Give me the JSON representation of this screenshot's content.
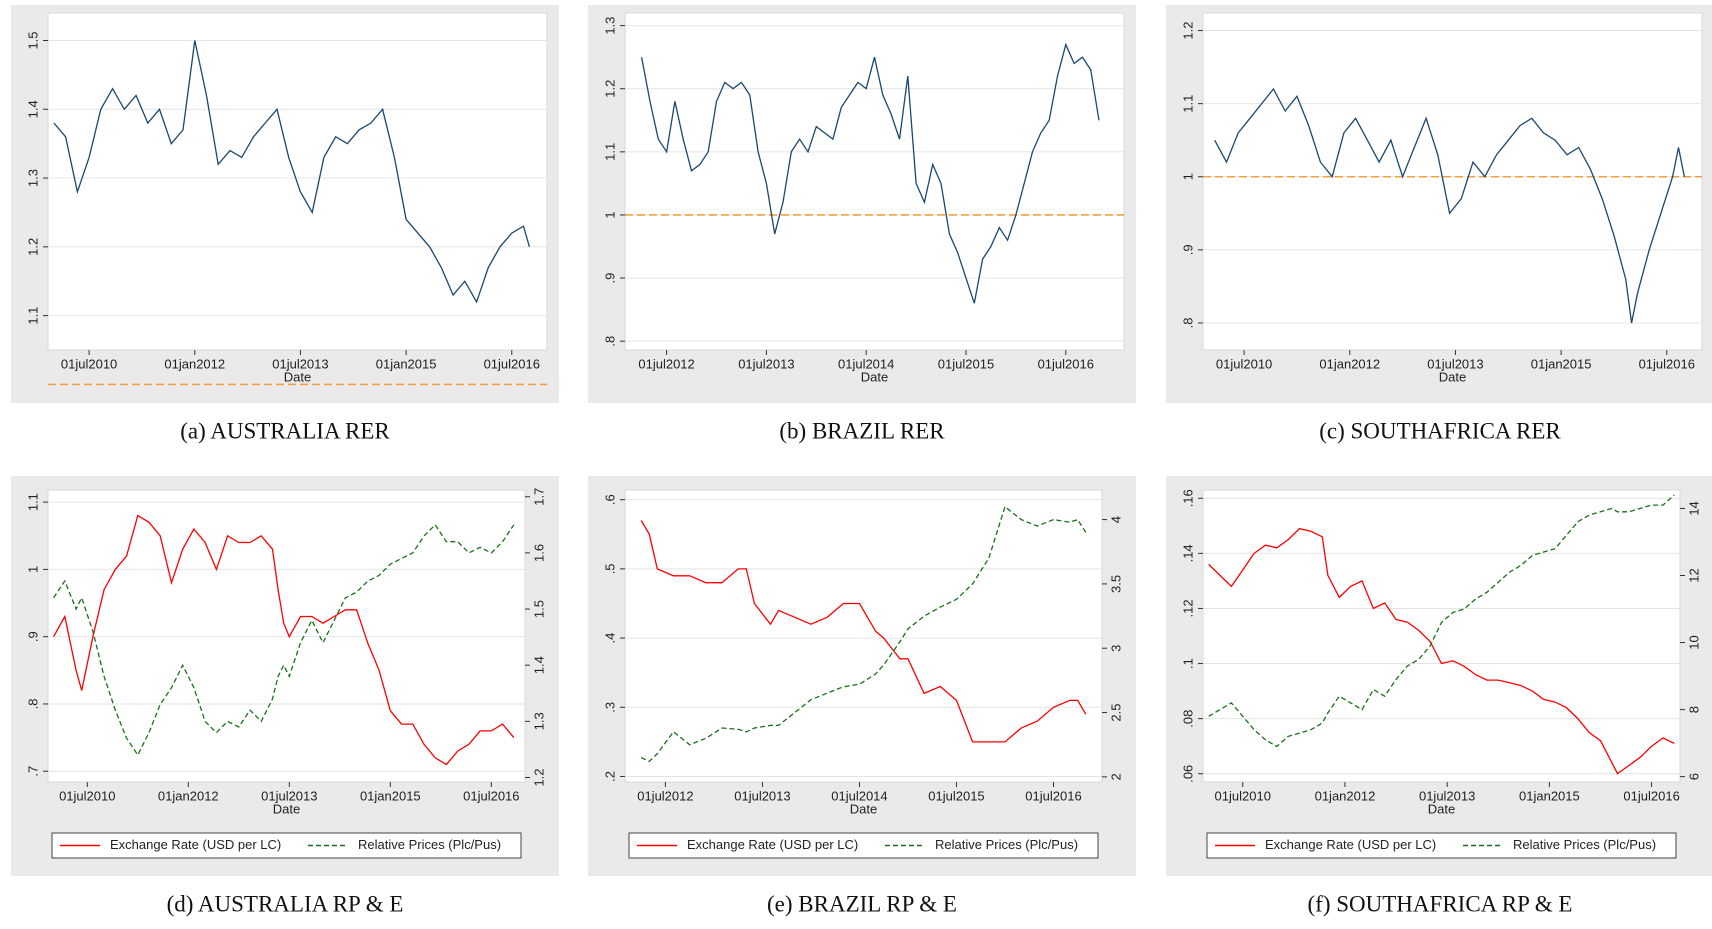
{
  "chart_data": [
    {
      "type": "line",
      "caption": "(a) AUSTRALIA RER",
      "xlabel": "Date",
      "grid": true,
      "x": [
        "2010-01",
        "2010-03",
        "2010-05",
        "2010-07",
        "2010-09",
        "2010-11",
        "2011-01",
        "2011-03",
        "2011-05",
        "2011-07",
        "2011-09",
        "2011-11",
        "2012-01",
        "2012-03",
        "2012-05",
        "2012-07",
        "2012-09",
        "2012-11",
        "2013-01",
        "2013-03",
        "2013-05",
        "2013-07",
        "2013-09",
        "2013-11",
        "2014-01",
        "2014-03",
        "2014-05",
        "2014-07",
        "2014-09",
        "2014-11",
        "2015-01",
        "2015-03",
        "2015-05",
        "2015-07",
        "2015-09",
        "2015-11",
        "2016-01",
        "2016-03",
        "2016-05",
        "2016-07",
        "2016-09",
        "2016-10"
      ],
      "series": [
        {
          "color": "#1a476f",
          "values": [
            1.38,
            1.36,
            1.28,
            1.33,
            1.4,
            1.43,
            1.4,
            1.42,
            1.38,
            1.4,
            1.35,
            1.37,
            1.5,
            1.42,
            1.32,
            1.34,
            1.33,
            1.36,
            1.38,
            1.4,
            1.33,
            1.28,
            1.25,
            1.33,
            1.36,
            1.35,
            1.37,
            1.38,
            1.4,
            1.33,
            1.24,
            1.22,
            1.2,
            1.17,
            1.13,
            1.15,
            1.12,
            1.17,
            1.2,
            1.22,
            1.23,
            1.2
          ]
        }
      ],
      "reference_line": {
        "value": 1,
        "color": "#f0a040"
      },
      "xlim": [
        "2009-12",
        "2017-01"
      ],
      "ylim": [
        1.05,
        1.54
      ],
      "xticks": [
        {
          "value": "2010-07",
          "label": "01jul2010"
        },
        {
          "value": "2012-01",
          "label": "01jan2012"
        },
        {
          "value": "2013-07",
          "label": "01jul2013"
        },
        {
          "value": "2015-01",
          "label": "01jan2015"
        },
        {
          "value": "2016-07",
          "label": "01jul2016"
        }
      ],
      "yticks": [
        1.1,
        1.2,
        1.3,
        1.4,
        1.5
      ]
    },
    {
      "type": "line",
      "caption": "(b) BRAZIL RER",
      "xlabel": "Date",
      "grid": true,
      "x": [
        "2012-04",
        "2012-05",
        "2012-06",
        "2012-07",
        "2012-08",
        "2012-09",
        "2012-10",
        "2012-11",
        "2012-12",
        "2013-01",
        "2013-02",
        "2013-03",
        "2013-04",
        "2013-05",
        "2013-06",
        "2013-07",
        "2013-08",
        "2013-09",
        "2013-10",
        "2013-11",
        "2013-12",
        "2014-01",
        "2014-03",
        "2014-04",
        "2014-05",
        "2014-06",
        "2014-07",
        "2014-08",
        "2014-09",
        "2014-10",
        "2014-11",
        "2014-12",
        "2015-01",
        "2015-02",
        "2015-03",
        "2015-04",
        "2015-05",
        "2015-06",
        "2015-07",
        "2015-08",
        "2015-09",
        "2015-10",
        "2015-11",
        "2015-12",
        "2016-01",
        "2016-03",
        "2016-04",
        "2016-05",
        "2016-06",
        "2016-07",
        "2016-08",
        "2016-09",
        "2016-10",
        "2016-11"
      ],
      "series": [
        {
          "color": "#1a476f",
          "values": [
            1.25,
            1.18,
            1.12,
            1.1,
            1.18,
            1.12,
            1.07,
            1.08,
            1.1,
            1.18,
            1.21,
            1.2,
            1.21,
            1.19,
            1.1,
            1.05,
            0.97,
            1.02,
            1.1,
            1.12,
            1.1,
            1.14,
            1.12,
            1.17,
            1.19,
            1.21,
            1.2,
            1.25,
            1.19,
            1.16,
            1.12,
            1.22,
            1.05,
            1.02,
            1.08,
            1.05,
            0.97,
            0.94,
            0.9,
            0.86,
            0.93,
            0.95,
            0.98,
            0.96,
            1.0,
            1.1,
            1.13,
            1.15,
            1.22,
            1.27,
            1.24,
            1.25,
            1.23,
            1.15
          ]
        }
      ],
      "reference_line": {
        "value": 1,
        "color": "#f0a040"
      },
      "xlim": [
        "2012-02",
        "2017-02"
      ],
      "ylim": [
        0.786,
        1.32
      ],
      "xticks": [
        {
          "value": "2012-07",
          "label": "01jul2012"
        },
        {
          "value": "2013-07",
          "label": "01jul2013"
        },
        {
          "value": "2014-07",
          "label": "01jul2014"
        },
        {
          "value": "2015-07",
          "label": "01jul2015"
        },
        {
          "value": "2016-07",
          "label": "01jul2016"
        }
      ],
      "yticks": [
        {
          "value": 0.8,
          "label": ".8"
        },
        {
          "value": 0.9,
          "label": ".9"
        },
        1,
        1.1,
        1.2,
        1.3
      ]
    },
    {
      "type": "line",
      "caption": "(c) SOUTHAFRICA RER",
      "xlabel": "Date",
      "grid": true,
      "x": [
        "2010-02",
        "2010-04",
        "2010-06",
        "2010-08",
        "2010-10",
        "2010-12",
        "2011-02",
        "2011-04",
        "2011-06",
        "2011-08",
        "2011-10",
        "2011-12",
        "2012-02",
        "2012-04",
        "2012-06",
        "2012-08",
        "2012-10",
        "2012-12",
        "2013-02",
        "2013-04",
        "2013-06",
        "2013-08",
        "2013-10",
        "2013-12",
        "2014-02",
        "2014-04",
        "2014-06",
        "2014-08",
        "2014-10",
        "2014-12",
        "2015-02",
        "2015-04",
        "2015-06",
        "2015-08",
        "2015-10",
        "2015-12",
        "2016-01",
        "2016-02",
        "2016-04",
        "2016-06",
        "2016-08",
        "2016-09",
        "2016-10"
      ],
      "series": [
        {
          "color": "#1a476f",
          "values": [
            1.05,
            1.02,
            1.06,
            1.08,
            1.1,
            1.12,
            1.09,
            1.11,
            1.07,
            1.02,
            1.0,
            1.06,
            1.08,
            1.05,
            1.02,
            1.05,
            1.0,
            1.04,
            1.08,
            1.03,
            0.95,
            0.97,
            1.02,
            1.0,
            1.03,
            1.05,
            1.07,
            1.08,
            1.06,
            1.05,
            1.03,
            1.04,
            1.01,
            0.97,
            0.92,
            0.86,
            0.8,
            0.84,
            0.9,
            0.95,
            1.0,
            1.04,
            1.0
          ]
        }
      ],
      "reference_line": {
        "value": 1,
        "color": "#f0a040"
      },
      "xlim": [
        "2009-12",
        "2017-01"
      ],
      "ylim": [
        0.763,
        1.224
      ],
      "xticks": [
        {
          "value": "2010-07",
          "label": "01jul2010"
        },
        {
          "value": "2012-01",
          "label": "01jan2012"
        },
        {
          "value": "2013-07",
          "label": "01jul2013"
        },
        {
          "value": "2015-01",
          "label": "01jan2015"
        },
        {
          "value": "2016-07",
          "label": "01jul2016"
        }
      ],
      "yticks": [
        {
          "value": 0.8,
          "label": ".8"
        },
        {
          "value": 0.9,
          "label": ".9"
        },
        1,
        1.1,
        1.2
      ]
    },
    {
      "type": "line",
      "caption": "(d) AUSTRALIA RP & E",
      "xlabel": "Date",
      "grid": true,
      "legend": "bottom",
      "x": [
        "2010-01",
        "2010-03",
        "2010-05",
        "2010-06",
        "2010-08",
        "2010-10",
        "2010-12",
        "2011-02",
        "2011-04",
        "2011-06",
        "2011-08",
        "2011-10",
        "2011-12",
        "2012-02",
        "2012-04",
        "2012-06",
        "2012-08",
        "2012-10",
        "2012-12",
        "2013-02",
        "2013-04",
        "2013-05",
        "2013-06",
        "2013-07",
        "2013-09",
        "2013-11",
        "2014-01",
        "2014-03",
        "2014-05",
        "2014-07",
        "2014-09",
        "2014-11",
        "2015-01",
        "2015-03",
        "2015-05",
        "2015-07",
        "2015-09",
        "2015-11",
        "2016-01",
        "2016-03",
        "2016-05",
        "2016-07",
        "2016-09",
        "2016-11"
      ],
      "series": [
        {
          "name": "Exchange Rate (USD per LC)",
          "color": "#ff0000",
          "dash": false,
          "values": [
            0.9,
            0.93,
            0.85,
            0.82,
            0.9,
            0.97,
            1.0,
            1.02,
            1.08,
            1.07,
            1.05,
            0.98,
            1.03,
            1.06,
            1.04,
            1.0,
            1.05,
            1.04,
            1.04,
            1.05,
            1.03,
            0.97,
            0.92,
            0.9,
            0.93,
            0.93,
            0.92,
            0.93,
            0.94,
            0.94,
            0.89,
            0.85,
            0.79,
            0.77,
            0.77,
            0.74,
            0.72,
            0.71,
            0.73,
            0.74,
            0.76,
            0.76,
            0.77,
            0.75
          ]
        },
        {
          "name": "Relative Prices (Plc/Pus)",
          "color": "#1a6e1a",
          "dash": true,
          "axis": "y2",
          "values": [
            1.52,
            1.55,
            1.5,
            1.52,
            1.46,
            1.38,
            1.32,
            1.27,
            1.24,
            1.28,
            1.33,
            1.36,
            1.4,
            1.36,
            1.3,
            1.28,
            1.3,
            1.29,
            1.32,
            1.3,
            1.34,
            1.38,
            1.4,
            1.38,
            1.44,
            1.48,
            1.44,
            1.48,
            1.52,
            1.53,
            1.55,
            1.56,
            1.58,
            1.59,
            1.6,
            1.63,
            1.65,
            1.62,
            1.62,
            1.6,
            1.61,
            1.6,
            1.62,
            1.65
          ]
        }
      ],
      "xlim": [
        "2009-12",
        "2017-01"
      ],
      "ylim": [
        0.684,
        1.118
      ],
      "y2lim": [
        1.192,
        1.712
      ],
      "xticks": [
        {
          "value": "2010-07",
          "label": "01jul2010"
        },
        {
          "value": "2012-01",
          "label": "01jan2012"
        },
        {
          "value": "2013-07",
          "label": "01jul2013"
        },
        {
          "value": "2015-01",
          "label": "01jan2015"
        },
        {
          "value": "2016-07",
          "label": "01jul2016"
        }
      ],
      "yticks": [
        {
          "value": 0.7,
          "label": ".7"
        },
        {
          "value": 0.8,
          "label": ".8"
        },
        {
          "value": 0.9,
          "label": ".9"
        },
        1,
        1.1
      ],
      "y2ticks": [
        1.2,
        1.3,
        1.4,
        1.5,
        1.6,
        1.7
      ]
    },
    {
      "type": "line",
      "caption": "(e) BRAZIL RP & E",
      "xlabel": "Date",
      "grid": true,
      "legend": "bottom",
      "x": [
        "2012-04",
        "2012-05",
        "2012-06",
        "2012-08",
        "2012-10",
        "2012-12",
        "2013-02",
        "2013-04",
        "2013-05",
        "2013-06",
        "2013-08",
        "2013-09",
        "2013-11",
        "2014-01",
        "2014-03",
        "2014-05",
        "2014-07",
        "2014-09",
        "2014-10",
        "2014-12",
        "2015-01",
        "2015-03",
        "2015-05",
        "2015-07",
        "2015-09",
        "2015-11",
        "2016-01",
        "2016-03",
        "2016-05",
        "2016-07",
        "2016-09",
        "2016-10",
        "2016-11"
      ],
      "series": [
        {
          "name": "Exchange Rate (USD per LC)",
          "color": "#ff0000",
          "dash": false,
          "values": [
            0.57,
            0.55,
            0.5,
            0.49,
            0.49,
            0.48,
            0.48,
            0.5,
            0.5,
            0.45,
            0.42,
            0.44,
            0.43,
            0.42,
            0.43,
            0.45,
            0.45,
            0.41,
            0.4,
            0.37,
            0.37,
            0.32,
            0.33,
            0.31,
            0.25,
            0.25,
            0.25,
            0.27,
            0.28,
            0.3,
            0.31,
            0.31,
            0.29
          ]
        },
        {
          "name": "Relative Prices (Plc/Pus)",
          "color": "#1a6e1a",
          "dash": true,
          "axis": "y2",
          "values": [
            2.15,
            2.12,
            2.18,
            2.35,
            2.25,
            2.3,
            2.38,
            2.37,
            2.35,
            2.38,
            2.4,
            2.4,
            2.5,
            2.6,
            2.65,
            2.7,
            2.72,
            2.8,
            2.87,
            3.05,
            3.15,
            3.25,
            3.32,
            3.38,
            3.5,
            3.7,
            4.1,
            4.0,
            3.95,
            4.0,
            3.98,
            4.0,
            3.9
          ]
        }
      ],
      "xlim": [
        "2012-02",
        "2017-01"
      ],
      "ylim": [
        0.192,
        0.614
      ],
      "y2lim": [
        1.96,
        4.23
      ],
      "xticks": [
        {
          "value": "2012-07",
          "label": "01jul2012"
        },
        {
          "value": "2013-07",
          "label": "01jul2013"
        },
        {
          "value": "2014-07",
          "label": "01jul2014"
        },
        {
          "value": "2015-07",
          "label": "01jul2015"
        },
        {
          "value": "2016-07",
          "label": "01jul2016"
        }
      ],
      "yticks": [
        {
          "value": 0.2,
          "label": ".2"
        },
        {
          "value": 0.3,
          "label": ".3"
        },
        {
          "value": 0.4,
          "label": ".4"
        },
        {
          "value": 0.5,
          "label": ".5"
        },
        {
          "value": 0.6,
          "label": ".6"
        }
      ],
      "y2ticks": [
        2,
        2.5,
        3,
        3.5,
        4
      ]
    },
    {
      "type": "line",
      "caption": "(f) SOUTHAFRICA RP & E",
      "xlabel": "Date",
      "grid": true,
      "legend": "bottom",
      "x": [
        "2010-01",
        "2010-03",
        "2010-05",
        "2010-07",
        "2010-09",
        "2010-11",
        "2011-01",
        "2011-03",
        "2011-05",
        "2011-07",
        "2011-09",
        "2011-10",
        "2011-12",
        "2012-02",
        "2012-04",
        "2012-06",
        "2012-08",
        "2012-10",
        "2012-12",
        "2013-02",
        "2013-04",
        "2013-06",
        "2013-08",
        "2013-10",
        "2013-12",
        "2014-02",
        "2014-04",
        "2014-06",
        "2014-08",
        "2014-10",
        "2014-12",
        "2015-02",
        "2015-04",
        "2015-06",
        "2015-08",
        "2015-10",
        "2015-12",
        "2016-01",
        "2016-03",
        "2016-05",
        "2016-07",
        "2016-09",
        "2016-11"
      ],
      "series": [
        {
          "name": "Exchange Rate (USD per LC)",
          "color": "#ff0000",
          "dash": false,
          "values": [
            0.136,
            0.132,
            0.128,
            0.134,
            0.14,
            0.143,
            0.142,
            0.145,
            0.149,
            0.148,
            0.146,
            0.132,
            0.124,
            0.128,
            0.13,
            0.12,
            0.122,
            0.116,
            0.115,
            0.112,
            0.108,
            0.1,
            0.101,
            0.099,
            0.096,
            0.094,
            0.094,
            0.093,
            0.092,
            0.09,
            0.087,
            0.086,
            0.084,
            0.08,
            0.075,
            0.072,
            0.064,
            0.06,
            0.063,
            0.066,
            0.07,
            0.073,
            0.071
          ]
        },
        {
          "name": "Relative Prices (Plc/Pus)",
          "color": "#1a6e1a",
          "dash": true,
          "axis": "y2",
          "values": [
            7.8,
            8.0,
            8.2,
            7.8,
            7.4,
            7.1,
            6.9,
            7.2,
            7.3,
            7.4,
            7.6,
            7.9,
            8.4,
            8.2,
            8.0,
            8.6,
            8.4,
            8.9,
            9.3,
            9.5,
            9.9,
            10.6,
            10.9,
            11.0,
            11.3,
            11.5,
            11.8,
            12.1,
            12.3,
            12.6,
            12.7,
            12.8,
            13.2,
            13.6,
            13.8,
            13.9,
            14.0,
            13.9,
            13.9,
            14.0,
            14.1,
            14.1,
            14.4
          ]
        }
      ],
      "xlim": [
        "2009-12",
        "2016-12"
      ],
      "ylim": [
        0.057,
        0.163
      ],
      "y2lim": [
        5.84,
        14.55
      ],
      "xticks": [
        {
          "value": "2010-07",
          "label": "01jul2010"
        },
        {
          "value": "2012-01",
          "label": "01jan2012"
        },
        {
          "value": "2013-07",
          "label": "01jul2013"
        },
        {
          "value": "2015-01",
          "label": "01jan2015"
        },
        {
          "value": "2016-07",
          "label": "01jul2016"
        }
      ],
      "yticks": [
        {
          "value": 0.06,
          "label": ".06"
        },
        {
          "value": 0.08,
          "label": ".08"
        },
        {
          "value": 0.1,
          "label": ".1"
        },
        {
          "value": 0.12,
          "label": ".12"
        },
        {
          "value": 0.14,
          "label": ".14"
        },
        {
          "value": 0.16,
          "label": ".16"
        }
      ],
      "y2ticks": [
        6,
        8,
        10,
        12,
        14
      ]
    }
  ]
}
